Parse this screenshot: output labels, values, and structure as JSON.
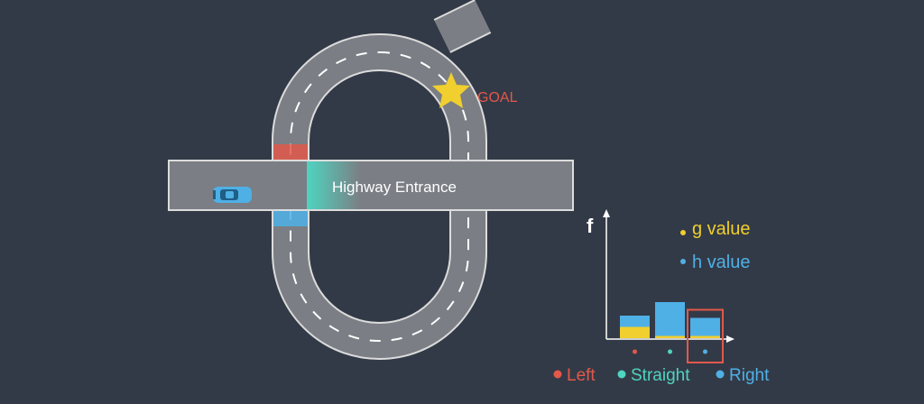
{
  "scene": {
    "goal_label": "GOAL",
    "highway_label": "Highway Entrance",
    "colors": {
      "background": "#333a47",
      "road": "#7b7e84",
      "road_edge": "#dcdcdc",
      "lane_marking": "#ffffff",
      "goal_star": "#f0cf2e",
      "goal_text": "#e2584a",
      "car": "#4fb0e6",
      "left_marker": "#e2584a",
      "straight_marker": "#4fd4c0",
      "right_marker": "#4fb0e6"
    }
  },
  "chart": {
    "y_label": "f",
    "legend": [
      {
        "label": "g value",
        "color": "#f0cf2e"
      },
      {
        "label": "h value",
        "color": "#4fb0e6"
      }
    ],
    "selected_category": "Right"
  },
  "chart_data": {
    "type": "bar",
    "categories": [
      "Left",
      "Straight",
      "Right"
    ],
    "category_colors": [
      "#e2584a",
      "#4fd4c0",
      "#4fb0e6"
    ],
    "series": [
      {
        "name": "g value",
        "values": [
          1.0,
          0.2,
          0.2
        ]
      },
      {
        "name": "h value",
        "values": [
          1.0,
          3.0,
          1.6
        ]
      }
    ],
    "stacked": true
  }
}
